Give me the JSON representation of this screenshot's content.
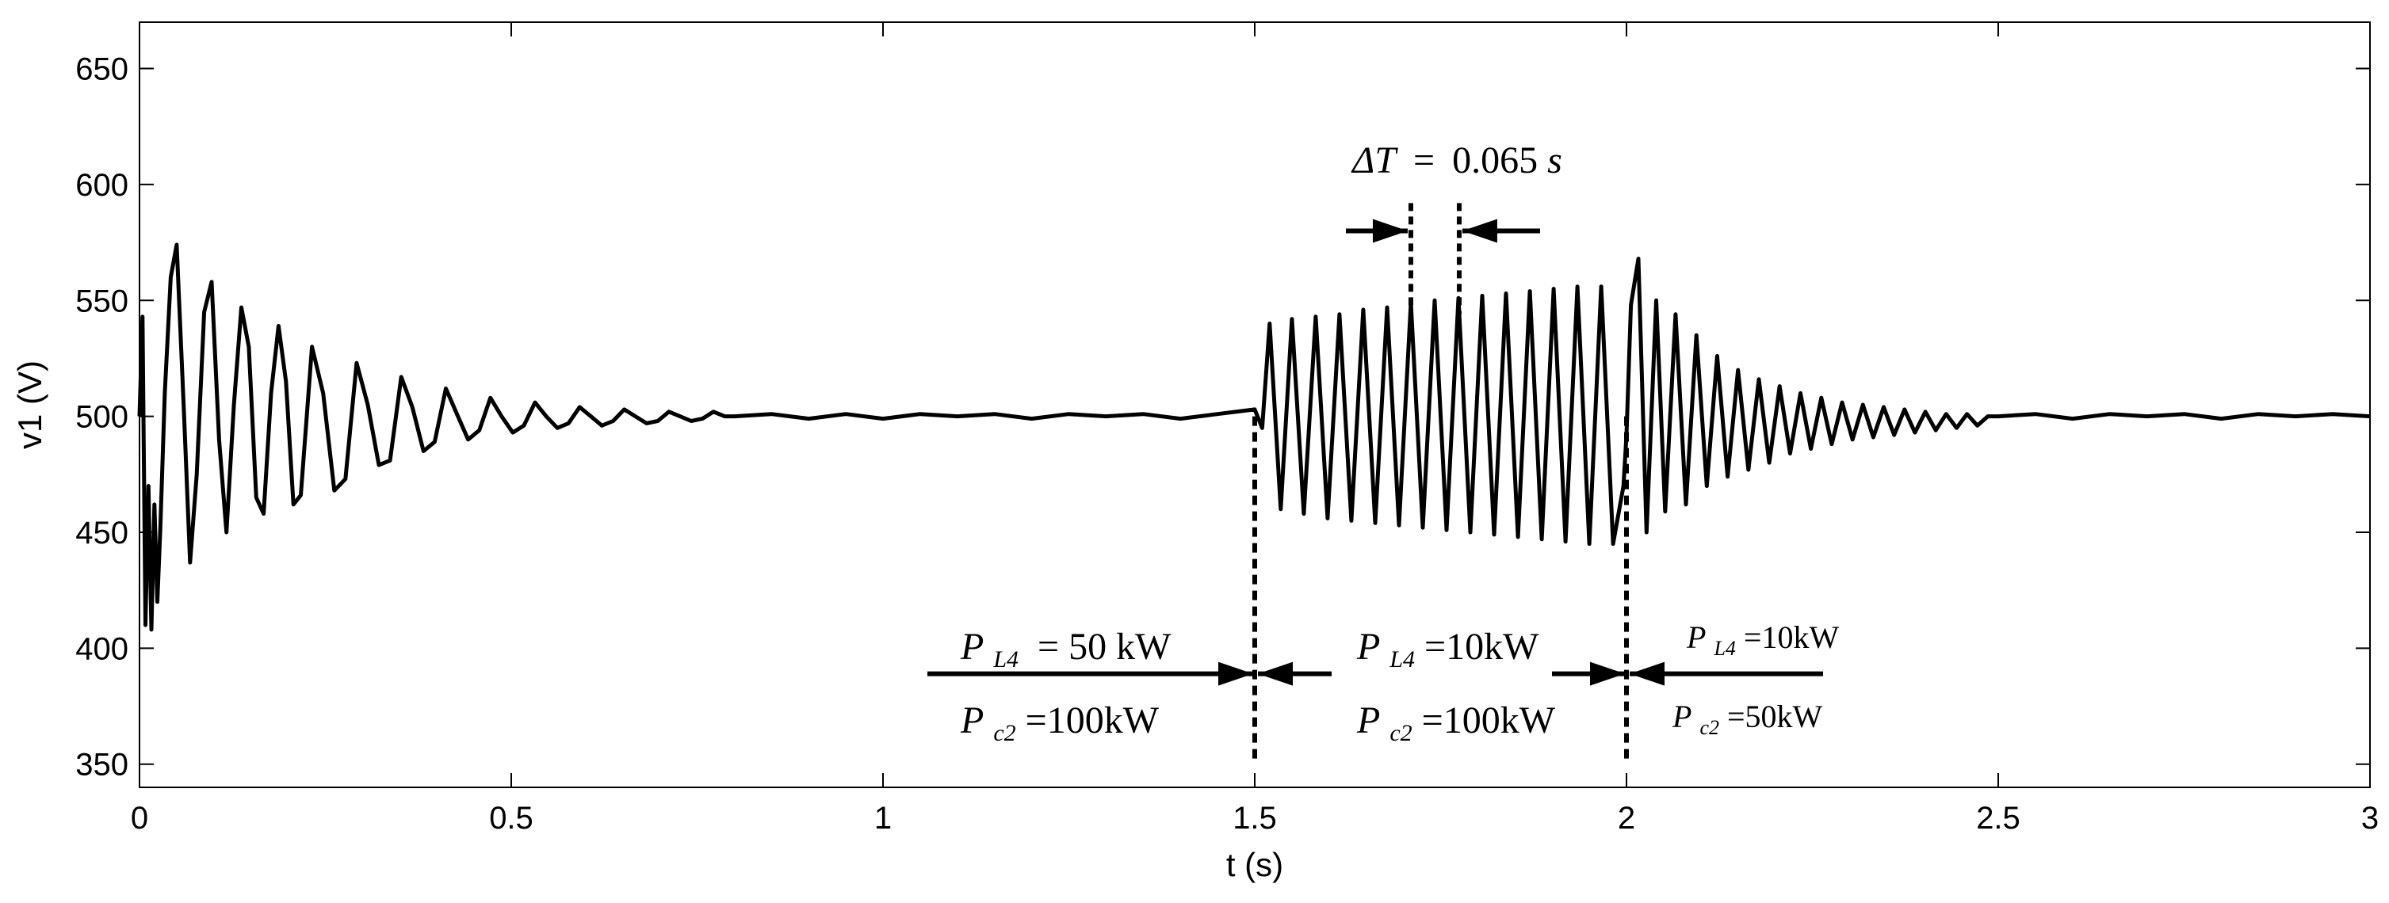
{
  "chart_data": {
    "type": "line",
    "title": "",
    "xlabel": "t (s)",
    "ylabel": "v1 (V)",
    "xlim": [
      0,
      3
    ],
    "ylim": [
      340,
      670
    ],
    "xticks": [
      0,
      0.5,
      1,
      1.5,
      2,
      2.5,
      3
    ],
    "xtick_labels": [
      "0",
      "0.5",
      "1",
      "1.5",
      "2",
      "2.5",
      "3"
    ],
    "yticks": [
      350,
      400,
      450,
      500,
      550,
      600,
      650
    ],
    "ytick_labels": [
      "350",
      "400",
      "450",
      "500",
      "550",
      "600",
      "650"
    ],
    "grid": false,
    "series": [
      {
        "color": "#000000",
        "x": [
          0,
          0.004,
          0.008,
          0.012,
          0.016,
          0.02,
          0.024,
          0.028,
          0.034,
          0.042,
          0.05,
          0.06,
          0.068,
          0.077,
          0.087,
          0.097,
          0.107,
          0.117,
          0.127,
          0.137,
          0.147,
          0.157,
          0.167,
          0.177,
          0.187,
          0.197,
          0.207,
          0.217,
          0.232,
          0.247,
          0.262,
          0.277,
          0.292,
          0.307,
          0.322,
          0.337,
          0.352,
          0.367,
          0.382,
          0.397,
          0.412,
          0.427,
          0.442,
          0.457,
          0.472,
          0.487,
          0.502,
          0.517,
          0.532,
          0.547,
          0.562,
          0.577,
          0.592,
          0.607,
          0.622,
          0.637,
          0.652,
          0.667,
          0.682,
          0.697,
          0.712,
          0.727,
          0.742,
          0.757,
          0.772,
          0.787,
          0.8,
          0.85,
          0.9,
          0.95,
          1.0,
          1.05,
          1.1,
          1.15,
          1.2,
          1.25,
          1.3,
          1.35,
          1.4,
          1.45,
          1.5,
          1.51,
          1.52,
          1.535,
          1.55,
          1.566,
          1.582,
          1.598,
          1.614,
          1.63,
          1.646,
          1.662,
          1.678,
          1.694,
          1.71,
          1.726,
          1.742,
          1.758,
          1.774,
          1.79,
          1.806,
          1.822,
          1.838,
          1.854,
          1.87,
          1.886,
          1.902,
          1.918,
          1.934,
          1.95,
          1.966,
          1.982,
          1.996,
          2.0,
          2.006,
          2.016,
          2.027,
          2.04,
          2.052,
          2.066,
          2.08,
          2.094,
          2.108,
          2.122,
          2.136,
          2.15,
          2.164,
          2.178,
          2.192,
          2.206,
          2.22,
          2.234,
          2.248,
          2.262,
          2.276,
          2.29,
          2.304,
          2.318,
          2.332,
          2.346,
          2.36,
          2.374,
          2.388,
          2.402,
          2.416,
          2.43,
          2.444,
          2.458,
          2.472,
          2.486,
          2.5,
          2.55,
          2.6,
          2.65,
          2.7,
          2.75,
          2.8,
          2.85,
          2.9,
          2.95,
          3.0
        ],
        "y": [
          500,
          543,
          410,
          470,
          408,
          462,
          420,
          452,
          510,
          560,
          574,
          500,
          437,
          475,
          545,
          558,
          490,
          450,
          505,
          547,
          530,
          465,
          458,
          510,
          539,
          515,
          462,
          466,
          530,
          510,
          468,
          473,
          523,
          505,
          479,
          481,
          517,
          504,
          485,
          489,
          512,
          501,
          490,
          494,
          508,
          500,
          493,
          496,
          506,
          500,
          495,
          497,
          504,
          500,
          496,
          498,
          503,
          500,
          497,
          498,
          502,
          500,
          498,
          499,
          502,
          500,
          500,
          501,
          499,
          501,
          499,
          501,
          500,
          501,
          499,
          501,
          500,
          501,
          499,
          501,
          503,
          495,
          540,
          460,
          542,
          458,
          543,
          456,
          544,
          455,
          546,
          454,
          547,
          453,
          549,
          452,
          550,
          451,
          551,
          450,
          552,
          449,
          553,
          448,
          554,
          447,
          555,
          446,
          556,
          445,
          556,
          445,
          470,
          492,
          548,
          568,
          450,
          550,
          459,
          544,
          462,
          535,
          470,
          526,
          474,
          520,
          477,
          516,
          480,
          513,
          484,
          510,
          486,
          508,
          488,
          506,
          490,
          505,
          491,
          504,
          492,
          503,
          493,
          502,
          494,
          501,
          495,
          501,
          496,
          500,
          500,
          501,
          499,
          501,
          500,
          501,
          499,
          501,
          500,
          501,
          500
        ]
      }
    ],
    "annotations": {
      "delta_t": {
        "lhs": "ΔT",
        "eq": "=",
        "value": "0.065",
        "unit": "s",
        "x_start": 1.71,
        "x_end": 1.775
      },
      "event_lines_x": [
        1.5,
        2.0
      ],
      "left_box": {
        "line1": {
          "var": "P",
          "sub": "L4",
          "rhs": "= 50 kW"
        },
        "line2": {
          "var": "P",
          "sub": "c2",
          "rhs": "=100kW"
        }
      },
      "mid_box": {
        "line1": {
          "var": "P",
          "sub": "L4",
          "rhs": "=10kW"
        },
        "line2": {
          "var": "P",
          "sub": "c2",
          "rhs": "=100kW"
        }
      },
      "right_box": {
        "line1": {
          "var": "P",
          "sub": "L4",
          "rhs": "=10kW"
        },
        "line2": {
          "var": "P",
          "sub": "c2",
          "rhs": "=50kW"
        }
      }
    }
  }
}
